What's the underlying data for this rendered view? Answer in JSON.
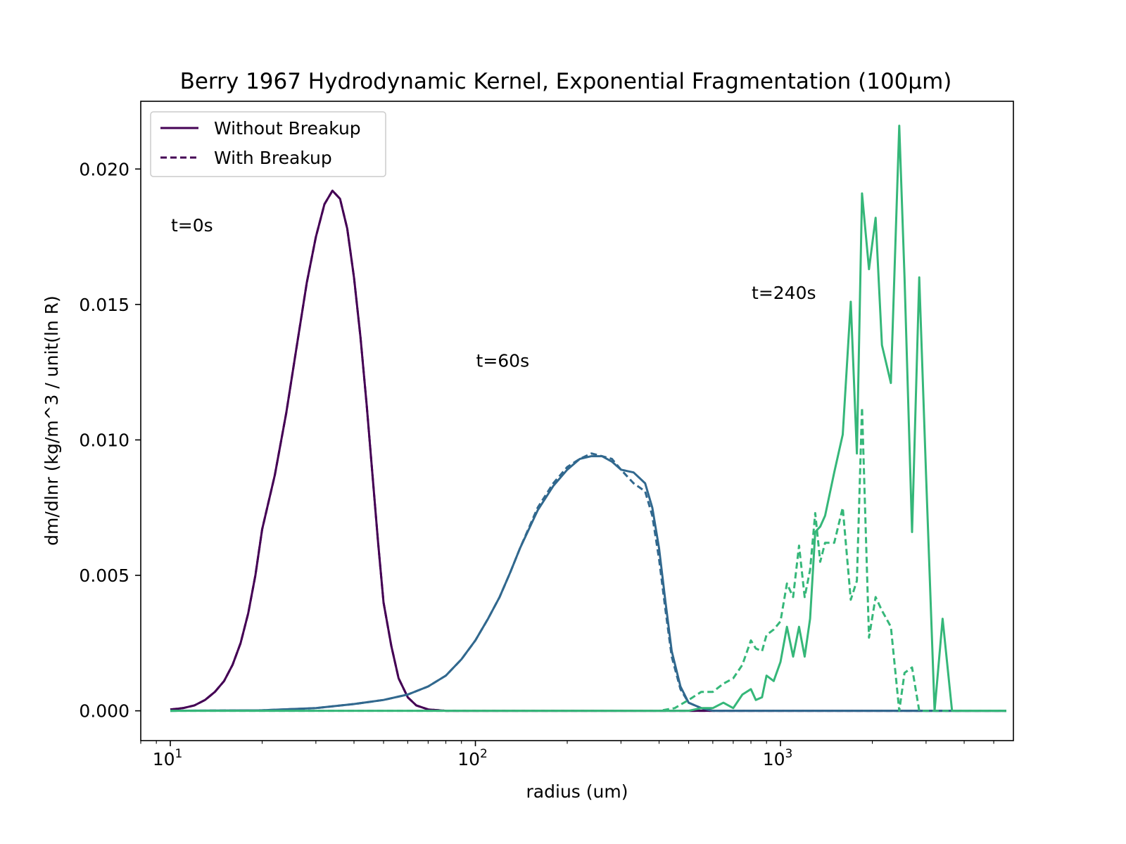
{
  "chart_data": {
    "type": "line",
    "title": "Berry 1967 Hydrodynamic Kernel, Exponential Fragmentation (100μm)",
    "xlabel": "radius (um)",
    "ylabel": "dm/dlnr (kg/m^3 / unit(ln R)",
    "xscale": "log",
    "xlim": [
      8,
      5800
    ],
    "ylim": [
      -0.0011,
      0.0225
    ],
    "xticks": [
      {
        "value": 10,
        "base": "10",
        "exp": "1"
      },
      {
        "value": 100,
        "base": "10",
        "exp": "2"
      },
      {
        "value": 1000,
        "base": "10",
        "exp": "3"
      }
    ],
    "yticks": [
      {
        "value": 0.0,
        "label": "0.000"
      },
      {
        "value": 0.005,
        "label": "0.005"
      },
      {
        "value": 0.01,
        "label": "0.010"
      },
      {
        "value": 0.015,
        "label": "0.015"
      },
      {
        "value": 0.02,
        "label": "0.020"
      }
    ],
    "grid": false,
    "legend": {
      "position": "top-left",
      "entries": [
        {
          "label": "Without Breakup",
          "style": "solid"
        },
        {
          "label": "With Breakup",
          "style": "dashed"
        }
      ]
    },
    "annotations": [
      {
        "text": "t=0s",
        "x": 10.0,
        "y": 0.0177
      },
      {
        "text": "t=60s",
        "x": 100.0,
        "y": 0.0127
      },
      {
        "text": "t=240s",
        "x": 800.0,
        "y": 0.0152
      }
    ],
    "colors": {
      "t0": "#440154",
      "t60": "#31688e",
      "t240": "#35b779"
    },
    "series": [
      {
        "group": "t0",
        "style": "solid",
        "color": "#440154",
        "points": [
          [
            10,
            5e-05
          ],
          [
            11,
            0.0001
          ],
          [
            12,
            0.0002
          ],
          [
            13,
            0.0004
          ],
          [
            14,
            0.0007
          ],
          [
            15,
            0.0011
          ],
          [
            16,
            0.0017
          ],
          [
            17,
            0.0025
          ],
          [
            18,
            0.0036
          ],
          [
            19,
            0.005
          ],
          [
            20,
            0.0067
          ],
          [
            22,
            0.0087
          ],
          [
            24,
            0.011
          ],
          [
            26,
            0.0135
          ],
          [
            28,
            0.0158
          ],
          [
            30,
            0.0175
          ],
          [
            32,
            0.0187
          ],
          [
            34,
            0.0192
          ],
          [
            36,
            0.0189
          ],
          [
            38,
            0.0178
          ],
          [
            40,
            0.016
          ],
          [
            42,
            0.0138
          ],
          [
            44,
            0.0113
          ],
          [
            46,
            0.0087
          ],
          [
            48,
            0.0062
          ],
          [
            50,
            0.004
          ],
          [
            53,
            0.0024
          ],
          [
            56,
            0.0012
          ],
          [
            60,
            0.0005
          ],
          [
            64,
            0.0002
          ],
          [
            70,
            5e-05
          ],
          [
            80,
            0
          ],
          [
            100,
            0
          ],
          [
            1000,
            0
          ],
          [
            5500,
            0
          ]
        ]
      },
      {
        "group": "t0",
        "style": "dashed",
        "color": "#440154",
        "points": [
          [
            10,
            5e-05
          ],
          [
            11,
            0.0001
          ],
          [
            12,
            0.0002
          ],
          [
            13,
            0.0004
          ],
          [
            14,
            0.0007
          ],
          [
            15,
            0.0011
          ],
          [
            16,
            0.0017
          ],
          [
            17,
            0.0025
          ],
          [
            18,
            0.0036
          ],
          [
            19,
            0.005
          ],
          [
            20,
            0.0067
          ],
          [
            22,
            0.0087
          ],
          [
            24,
            0.011
          ],
          [
            26,
            0.0135
          ],
          [
            28,
            0.0158
          ],
          [
            30,
            0.0175
          ],
          [
            32,
            0.0187
          ],
          [
            34,
            0.0192
          ],
          [
            36,
            0.0189
          ],
          [
            38,
            0.0178
          ],
          [
            40,
            0.016
          ],
          [
            42,
            0.0138
          ],
          [
            44,
            0.0113
          ],
          [
            46,
            0.0087
          ],
          [
            48,
            0.0062
          ],
          [
            50,
            0.004
          ],
          [
            53,
            0.0024
          ],
          [
            56,
            0.0012
          ],
          [
            60,
            0.0005
          ],
          [
            64,
            0.0002
          ],
          [
            70,
            5e-05
          ],
          [
            80,
            0
          ],
          [
            100,
            0
          ],
          [
            1000,
            0
          ],
          [
            5500,
            0
          ]
        ]
      },
      {
        "group": "t60",
        "style": "solid",
        "color": "#31688e",
        "points": [
          [
            10,
            0
          ],
          [
            20,
            2e-05
          ],
          [
            30,
            0.0001
          ],
          [
            40,
            0.00025
          ],
          [
            50,
            0.0004
          ],
          [
            60,
            0.0006
          ],
          [
            70,
            0.0009
          ],
          [
            80,
            0.0013
          ],
          [
            90,
            0.0019
          ],
          [
            100,
            0.0026
          ],
          [
            110,
            0.0034
          ],
          [
            120,
            0.0042
          ],
          [
            130,
            0.0051
          ],
          [
            140,
            0.006
          ],
          [
            160,
            0.0074
          ],
          [
            180,
            0.0083
          ],
          [
            200,
            0.0089
          ],
          [
            220,
            0.0093
          ],
          [
            240,
            0.0094
          ],
          [
            260,
            0.0094
          ],
          [
            280,
            0.0092
          ],
          [
            300,
            0.0089
          ],
          [
            330,
            0.0088
          ],
          [
            360,
            0.0084
          ],
          [
            380,
            0.0075
          ],
          [
            400,
            0.006
          ],
          [
            420,
            0.004
          ],
          [
            440,
            0.0022
          ],
          [
            470,
            0.0009
          ],
          [
            500,
            0.0003
          ],
          [
            550,
            0.0001
          ],
          [
            600,
            0
          ],
          [
            1000,
            0
          ],
          [
            5500,
            0
          ]
        ]
      },
      {
        "group": "t60",
        "style": "dashed",
        "color": "#31688e",
        "points": [
          [
            10,
            0
          ],
          [
            20,
            2e-05
          ],
          [
            30,
            0.0001
          ],
          [
            40,
            0.00025
          ],
          [
            50,
            0.0004
          ],
          [
            60,
            0.0006
          ],
          [
            70,
            0.0009
          ],
          [
            80,
            0.0013
          ],
          [
            90,
            0.0019
          ],
          [
            100,
            0.0026
          ],
          [
            110,
            0.0034
          ],
          [
            120,
            0.0042
          ],
          [
            130,
            0.0051
          ],
          [
            140,
            0.006
          ],
          [
            160,
            0.0075
          ],
          [
            180,
            0.0084
          ],
          [
            200,
            0.009
          ],
          [
            220,
            0.0093
          ],
          [
            240,
            0.0095
          ],
          [
            260,
            0.0094
          ],
          [
            280,
            0.0093
          ],
          [
            300,
            0.0089
          ],
          [
            330,
            0.0084
          ],
          [
            360,
            0.0081
          ],
          [
            380,
            0.0072
          ],
          [
            400,
            0.0056
          ],
          [
            420,
            0.0037
          ],
          [
            440,
            0.002
          ],
          [
            470,
            0.0008
          ],
          [
            500,
            0.0003
          ],
          [
            550,
            0.0001
          ],
          [
            600,
            0
          ],
          [
            1000,
            0
          ],
          [
            5500,
            0
          ]
        ]
      },
      {
        "group": "t240",
        "style": "solid",
        "color": "#35b779",
        "points": [
          [
            10,
            0
          ],
          [
            400,
            0
          ],
          [
            500,
            0
          ],
          [
            550,
            0.0001
          ],
          [
            600,
            0.0001
          ],
          [
            650,
            0.0003
          ],
          [
            700,
            0.0001
          ],
          [
            750,
            0.0006
          ],
          [
            800,
            0.0008
          ],
          [
            830,
            0.0004
          ],
          [
            870,
            0.0005
          ],
          [
            900,
            0.0013
          ],
          [
            950,
            0.0011
          ],
          [
            1000,
            0.0018
          ],
          [
            1050,
            0.0031
          ],
          [
            1100,
            0.002
          ],
          [
            1150,
            0.0031
          ],
          [
            1200,
            0.002
          ],
          [
            1250,
            0.0034
          ],
          [
            1300,
            0.0066
          ],
          [
            1350,
            0.0068
          ],
          [
            1400,
            0.0072
          ],
          [
            1500,
            0.0088
          ],
          [
            1600,
            0.0102
          ],
          [
            1700,
            0.0151
          ],
          [
            1780,
            0.0095
          ],
          [
            1850,
            0.0191
          ],
          [
            1950,
            0.0163
          ],
          [
            2050,
            0.0182
          ],
          [
            2150,
            0.0135
          ],
          [
            2300,
            0.0121
          ],
          [
            2450,
            0.0216
          ],
          [
            2550,
            0.016
          ],
          [
            2700,
            0.0066
          ],
          [
            2850,
            0.016
          ],
          [
            3000,
            0.0087
          ],
          [
            3200,
            0.0
          ],
          [
            3400,
            0.0034
          ],
          [
            3650,
            0
          ],
          [
            5500,
            0
          ]
        ]
      },
      {
        "group": "t240",
        "style": "dashed",
        "color": "#35b779",
        "points": [
          [
            10,
            0
          ],
          [
            400,
            0
          ],
          [
            450,
            0.0001
          ],
          [
            500,
            0.0004
          ],
          [
            550,
            0.0007
          ],
          [
            600,
            0.0007
          ],
          [
            650,
            0.001
          ],
          [
            700,
            0.0012
          ],
          [
            750,
            0.0017
          ],
          [
            800,
            0.0026
          ],
          [
            830,
            0.0023
          ],
          [
            870,
            0.0022
          ],
          [
            900,
            0.0028
          ],
          [
            950,
            0.003
          ],
          [
            1000,
            0.0033
          ],
          [
            1050,
            0.0047
          ],
          [
            1100,
            0.0042
          ],
          [
            1150,
            0.0061
          ],
          [
            1200,
            0.0042
          ],
          [
            1250,
            0.0052
          ],
          [
            1300,
            0.0073
          ],
          [
            1350,
            0.0055
          ],
          [
            1400,
            0.0062
          ],
          [
            1500,
            0.0062
          ],
          [
            1600,
            0.0075
          ],
          [
            1700,
            0.0041
          ],
          [
            1780,
            0.0048
          ],
          [
            1850,
            0.0112
          ],
          [
            1950,
            0.0027
          ],
          [
            2050,
            0.0042
          ],
          [
            2150,
            0.0037
          ],
          [
            2300,
            0.0031
          ],
          [
            2450,
            0.0
          ],
          [
            2550,
            0.0014
          ],
          [
            2700,
            0.0016
          ],
          [
            2850,
            0.0
          ],
          [
            3000,
            0
          ],
          [
            5500,
            0
          ]
        ]
      }
    ]
  }
}
